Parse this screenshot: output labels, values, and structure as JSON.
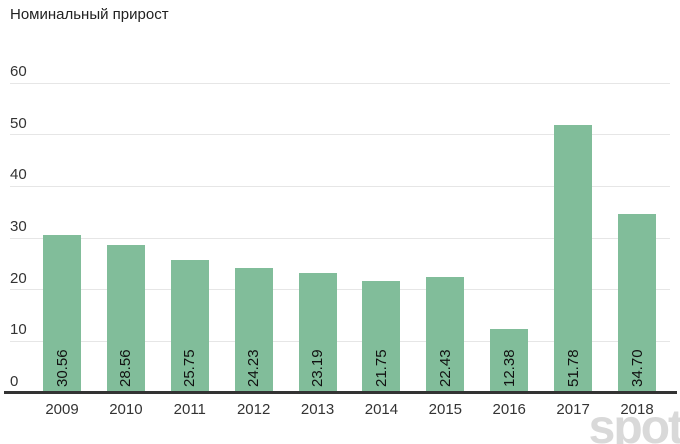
{
  "title": "Номинальный прирост",
  "watermark": "spot",
  "colors": {
    "bar": "#81bd9a",
    "gridline": "#e6e6e6",
    "baseline": "#333333",
    "title_text": "#212121",
    "tick_text": "#333333",
    "value_text": "#111111",
    "watermark_text": "#d9d9d9",
    "background": "#ffffff"
  },
  "chart_data": {
    "type": "bar",
    "title": "Номинальный прирост",
    "categories": [
      "2009",
      "2010",
      "2011",
      "2012",
      "2013",
      "2014",
      "2015",
      "2016",
      "2017",
      "2018"
    ],
    "values": [
      30.56,
      28.56,
      25.75,
      24.23,
      23.19,
      21.75,
      22.43,
      12.38,
      51.78,
      34.7
    ],
    "value_labels": [
      "30.56",
      "28.56",
      "25.75",
      "24.23",
      "23.19",
      "21.75",
      "22.43",
      "12.38",
      "51.78",
      "34.70"
    ],
    "xlabel": "",
    "ylabel": "",
    "ylim": [
      0,
      60
    ],
    "yticks": [
      0,
      10,
      20,
      30,
      40,
      50,
      60
    ],
    "grid": true,
    "legend": false,
    "value_label_style": "rotated-90-inside-bar-bottom"
  }
}
